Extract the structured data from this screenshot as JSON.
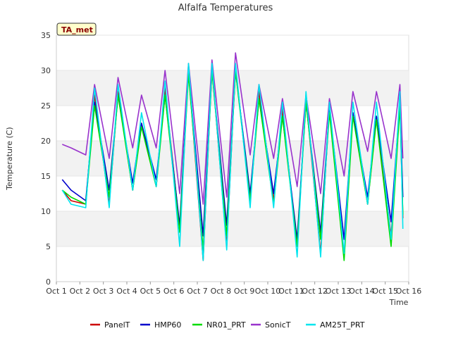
{
  "chart_data": {
    "type": "line",
    "title": "Alfalfa Temperatures",
    "xlabel": "Time",
    "ylabel": "Temperature (C)",
    "badge": "TA_met",
    "x_ticks": [
      "Oct 1",
      "Oct 2",
      "Oct 3",
      "Oct 4",
      "Oct 5",
      "Oct 6",
      "Oct 7",
      "Oct 8",
      "Oct 9",
      "Oct 10",
      "Oct 11",
      "Oct 12",
      "Oct 13",
      "Oct 14",
      "Oct 15",
      "Oct 16"
    ],
    "xlim": [
      "2023-10-01",
      "2023-10-16"
    ],
    "ylim": [
      0,
      35
    ],
    "y_ticks": [
      0,
      5,
      10,
      15,
      20,
      25,
      30,
      35
    ],
    "grid": "horizontal bands",
    "legend_position": "bottom",
    "x": [
      "2023-10-01 06:00",
      "2023-10-01 15:00",
      "2023-10-02 06:00",
      "2023-10-02 15:00",
      "2023-10-03 06:00",
      "2023-10-03 15:00",
      "2023-10-04 06:00",
      "2023-10-04 15:00",
      "2023-10-05 06:00",
      "2023-10-05 15:00",
      "2023-10-06 06:00",
      "2023-10-06 15:00",
      "2023-10-07 06:00",
      "2023-10-07 15:00",
      "2023-10-08 06:00",
      "2023-10-08 15:00",
      "2023-10-09 06:00",
      "2023-10-09 15:00",
      "2023-10-10 06:00",
      "2023-10-10 15:00",
      "2023-10-11 06:00",
      "2023-10-11 15:00",
      "2023-10-12 06:00",
      "2023-10-12 15:00",
      "2023-10-13 06:00",
      "2023-10-13 15:00",
      "2023-10-14 06:00",
      "2023-10-14 15:00",
      "2023-10-15 06:00",
      "2023-10-15 15:00",
      "2023-10-15 18:00"
    ],
    "series": [
      {
        "name": "PanelT",
        "color": "#cc0000",
        "values": [
          13,
          11.5,
          11,
          26.5,
          11,
          27,
          13,
          22.5,
          13.5,
          27.5,
          7.5,
          30,
          3,
          30.5,
          5,
          30.5,
          11.5,
          27,
          11.5,
          24.5,
          5,
          26,
          4,
          25,
          3.5,
          24,
          11,
          23.5,
          6.5,
          26,
          9
        ]
      },
      {
        "name": "HMP60",
        "color": "#0000cc",
        "values": [
          14.5,
          13,
          11.5,
          25.5,
          13,
          26.5,
          14,
          22.5,
          14.5,
          26.5,
          8,
          30,
          6.5,
          30,
          8,
          30,
          12.5,
          26,
          12.5,
          23.5,
          6,
          25.5,
          7,
          24.5,
          6,
          24,
          12,
          23.5,
          8.5,
          25.5,
          12
        ]
      },
      {
        "name": "NR01_PRT",
        "color": "#00dd00",
        "values": [
          13,
          12,
          11,
          25,
          12,
          26.5,
          13,
          22,
          13.5,
          26.5,
          7,
          29.5,
          4.5,
          30,
          6.5,
          30,
          11.5,
          26,
          11,
          23.5,
          5,
          25.5,
          6,
          24,
          3,
          23.5,
          11,
          23,
          5,
          25,
          9.5
        ]
      },
      {
        "name": "SonicT",
        "color": "#9933cc",
        "values": [
          19.5,
          19,
          18,
          28,
          17.5,
          29,
          19,
          26.5,
          19,
          30,
          12.5,
          31,
          11,
          31.5,
          12,
          32.5,
          18,
          28,
          17.5,
          26,
          13.5,
          26.5,
          12.5,
          26,
          15,
          27,
          18.5,
          27,
          17.5,
          28,
          17.5
        ]
      },
      {
        "name": "AM25T_PRT",
        "color": "#00e5ee",
        "values": [
          13,
          11,
          10.5,
          27.5,
          10.5,
          28,
          13,
          24,
          13.5,
          28.5,
          5,
          31,
          3,
          31,
          4.5,
          31,
          10.5,
          28,
          10.5,
          25.5,
          3.5,
          27,
          3.5,
          25.5,
          4,
          25.5,
          11,
          25.5,
          6,
          27,
          7.5
        ]
      }
    ]
  }
}
